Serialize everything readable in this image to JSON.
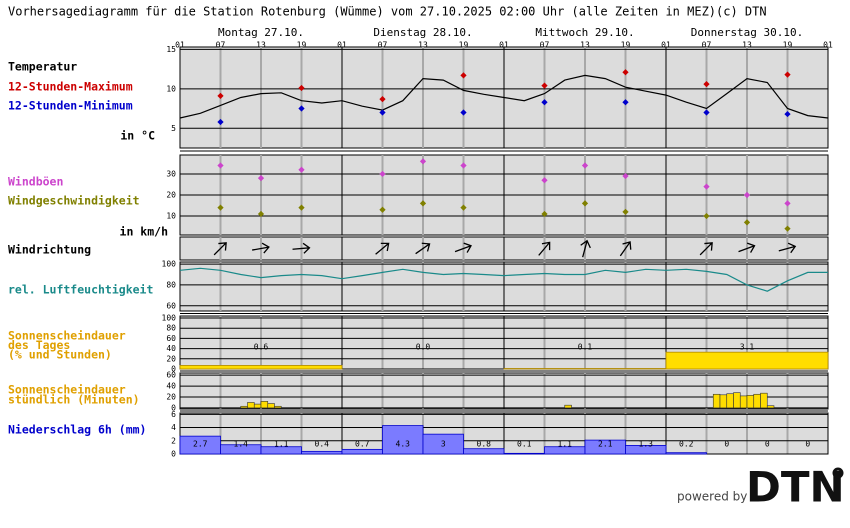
{
  "title": "Vorhersagediagramm für die Station Rotenburg (Wümme) vom 27.10.2025 02:00 Uhr (alle Zeiten in MEZ)",
  "copyright": "(c) DTN",
  "days": [
    "Montag 27.10.",
    "Dienstag 28.10.",
    "Mittwoch 29.10.",
    "Donnerstag 30.10."
  ],
  "hour_labels": [
    "01",
    "07",
    "13",
    "19",
    "01",
    "07",
    "13",
    "19",
    "01",
    "07",
    "13",
    "19",
    "01",
    "07",
    "13",
    "19",
    "01"
  ],
  "temperature": {
    "label": "Temperatur",
    "unit": "in °C",
    "max_label": "12-Stunden-Maximum",
    "min_label": "12-Stunden-Minimum",
    "color": "#000000",
    "max_color": "#cc0000",
    "min_color": "#0000cc",
    "ylim": [
      2.5,
      15.3
    ],
    "yticks": [
      5,
      10,
      15
    ],
    "hours": [
      0,
      3,
      6,
      9,
      12,
      15,
      18,
      21,
      24,
      27,
      30,
      33,
      36,
      39,
      42,
      45,
      48,
      51,
      54,
      57,
      60,
      63,
      66,
      69,
      72,
      75,
      78,
      81,
      84,
      87,
      90,
      93,
      96
    ],
    "values": [
      6.3,
      6.9,
      7.9,
      8.9,
      9.4,
      9.5,
      8.5,
      8.2,
      8.5,
      7.8,
      7.3,
      8.5,
      11.3,
      11.1,
      9.8,
      9.3,
      8.9,
      8.5,
      9.4,
      11.1,
      11.7,
      11.3,
      10.2,
      9.7,
      9.2,
      8.3,
      7.5,
      9.4,
      11.3,
      10.8,
      7.5,
      6.6,
      6.3
    ],
    "max": {
      "hours": [
        6,
        18,
        30,
        42,
        54,
        66,
        78,
        90
      ],
      "values": [
        9.1,
        10.1,
        8.7,
        11.7,
        10.4,
        12.1,
        10.6,
        11.8
      ]
    },
    "min": {
      "hours": [
        6,
        18,
        30,
        42,
        54,
        66,
        78,
        90
      ],
      "values": [
        5.8,
        7.5,
        7.0,
        7.0,
        8.3,
        8.3,
        7.0,
        6.8
      ]
    }
  },
  "wind": {
    "gust_label": "Windböen",
    "speed_label": "Windgeschwindigkeit",
    "unit": "in km/h",
    "gust_color": "#cc44cc",
    "speed_color": "#808000",
    "ylim": [
      1,
      39
    ],
    "yticks": [
      10,
      20,
      30
    ],
    "hours": [
      6,
      12,
      18,
      30,
      36,
      42,
      54,
      60,
      66,
      78,
      84,
      90
    ],
    "gusts": [
      34,
      28,
      32,
      30,
      36,
      34,
      27,
      34,
      29,
      24,
      20,
      16
    ],
    "speeds": [
      14,
      11,
      14,
      13,
      16,
      14,
      11,
      16,
      12,
      10,
      7,
      4
    ]
  },
  "wind_direction": {
    "label": "Windrichtung",
    "hours": [
      6,
      12,
      18,
      30,
      36,
      42,
      54,
      60,
      66,
      78,
      84,
      90
    ],
    "degrees": [
      225,
      260,
      265,
      230,
      235,
      250,
      220,
      195,
      215,
      225,
      250,
      255
    ]
  },
  "humidity": {
    "label": "rel. Luftfeuchtigkeit",
    "color": "#1a8a8a",
    "ylim": [
      55,
      102
    ],
    "yticks": [
      60,
      80,
      100
    ],
    "hours": [
      0,
      3,
      6,
      9,
      12,
      15,
      18,
      21,
      24,
      27,
      30,
      33,
      36,
      39,
      42,
      45,
      48,
      51,
      54,
      57,
      60,
      63,
      66,
      69,
      72,
      75,
      78,
      81,
      84,
      87,
      90,
      93,
      96
    ],
    "values": [
      94,
      96,
      94,
      90,
      87,
      89,
      90,
      89,
      86,
      89,
      92,
      95,
      92,
      90,
      91,
      90,
      89,
      90,
      91,
      90,
      90,
      94,
      92,
      95,
      94,
      95,
      93,
      90,
      80,
      74,
      84,
      92,
      92
    ]
  },
  "sunshine_daily": {
    "label": [
      "Sonnenscheindauer",
      "des Tages",
      "(% und Stunden)"
    ],
    "color": "#e0a000",
    "bar_color": "#ffdd00",
    "ylim": [
      0,
      104
    ],
    "yticks": [
      0,
      20,
      40,
      60,
      80,
      100
    ],
    "percent": [
      7,
      0,
      1,
      33
    ],
    "hours": [
      "0.6",
      "0.0",
      "0.1",
      "3.1"
    ]
  },
  "sunshine_hourly": {
    "label": [
      "Sonnenscheindauer",
      "stündlich (Minuten)"
    ],
    "color": "#e0a000",
    "bar_color": "#ffdd00",
    "ylim": [
      -2,
      64
    ],
    "yticks": [
      0,
      20,
      40,
      60
    ],
    "hours": [
      9,
      10,
      11,
      12,
      13,
      14,
      57,
      79,
      80,
      81,
      82,
      83,
      84,
      85,
      86,
      87
    ],
    "minutes": [
      3,
      10,
      7,
      12,
      8,
      3,
      5,
      25,
      24,
      26,
      28,
      22,
      23,
      25,
      27,
      4
    ]
  },
  "precipitation": {
    "label": "Niederschlag 6h (mm)",
    "color": "#0000cc",
    "bar_color": "#7b7bff",
    "ylim": [
      0,
      6.2
    ],
    "yticks": [
      0,
      2,
      4,
      6
    ],
    "values": [
      2.7,
      1.4,
      1.1,
      0.4,
      0.7,
      4.3,
      3,
      0.8,
      0.1,
      1.1,
      2.1,
      1.3,
      0.2,
      0,
      0,
      0
    ]
  },
  "footer": {
    "powered_by": "powered by",
    "logo": "DTN"
  }
}
